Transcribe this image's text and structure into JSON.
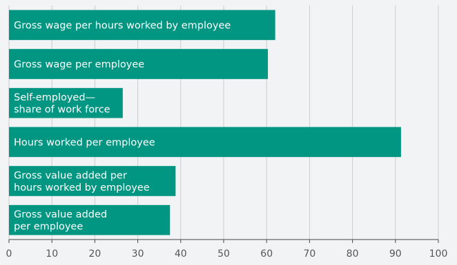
{
  "chart_data": {
    "type": "bar",
    "orientation": "horizontal",
    "categories": [
      "Gross wage per hours worked by employee",
      "Gross wage per employee",
      "Self-employed—share of work force",
      "Hours worked per employee",
      "Gross value added per hours worked by employee",
      "Gross value added per employee"
    ],
    "category_lines": [
      [
        "Gross wage per hours worked by employee"
      ],
      [
        "Gross wage per employee"
      ],
      [
        "Self-employed—",
        "share of work force"
      ],
      [
        "Hours worked per employee"
      ],
      [
        "Gross value added per",
        "hours worked by employee"
      ],
      [
        "Gross value added",
        "per employee"
      ]
    ],
    "values": [
      62,
      60.3,
      26.5,
      91.3,
      38.8,
      37.5
    ],
    "xlim": [
      0,
      100
    ],
    "xticks": [
      0,
      10,
      20,
      30,
      40,
      50,
      60,
      70,
      80,
      90,
      100
    ],
    "grid": true,
    "bar_color": "#009682",
    "grid_color": "#c8cbd0",
    "title": "",
    "xlabel": "",
    "ylabel": ""
  }
}
